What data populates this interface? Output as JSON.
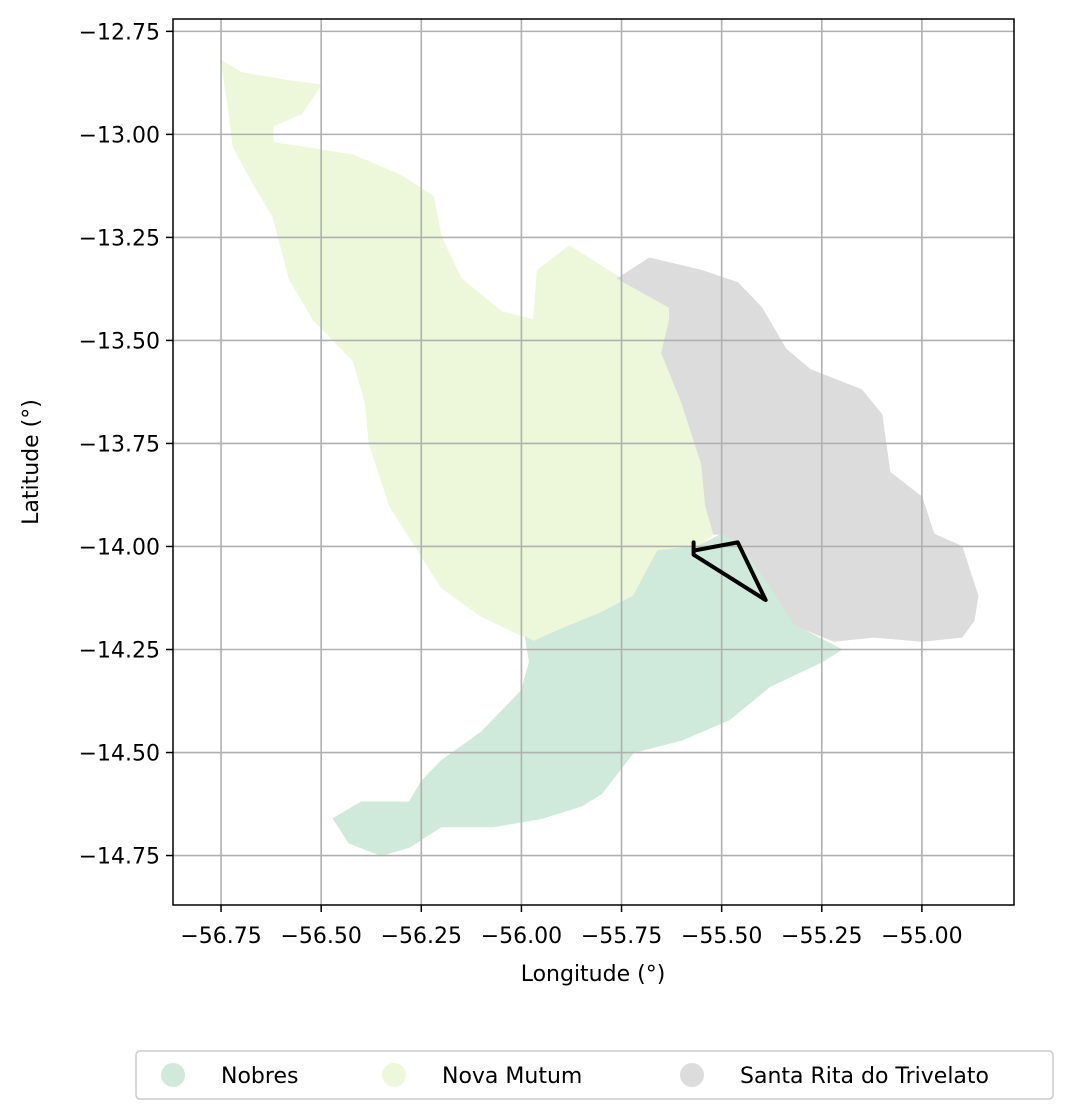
{
  "map": {
    "xlabel": "Longitude (°)",
    "ylabel": "Latitude (°)",
    "xlim": [
      -56.87,
      -54.77
    ],
    "ylim": [
      -14.87,
      -12.72
    ],
    "grid": true,
    "x_ticks": [
      -56.75,
      -56.5,
      -56.25,
      -56.0,
      -55.75,
      -55.5,
      -55.25,
      -55.0
    ],
    "x_tick_labels": [
      "−56.75",
      "−56.50",
      "−56.25",
      "−56.00",
      "−55.75",
      "−55.50",
      "−55.25",
      "−55.00"
    ],
    "y_ticks": [
      -12.75,
      -13.0,
      -13.25,
      -13.5,
      -13.75,
      -14.0,
      -14.25,
      -14.5,
      -14.75
    ],
    "y_tick_labels": [
      "−12.75",
      "−13.00",
      "−13.25",
      "−13.50",
      "−13.75",
      "−14.00",
      "−14.25",
      "−14.50",
      "−14.75"
    ],
    "regions": [
      {
        "name": "Nova Mutum",
        "color": "#edf8db",
        "coords": [
          [
            -56.75,
            -12.82
          ],
          [
            -56.7,
            -12.85
          ],
          [
            -56.58,
            -12.87
          ],
          [
            -56.5,
            -12.88
          ],
          [
            -56.55,
            -12.95
          ],
          [
            -56.62,
            -12.98
          ],
          [
            -56.62,
            -13.02
          ],
          [
            -56.55,
            -13.03
          ],
          [
            -56.42,
            -13.05
          ],
          [
            -56.3,
            -13.1
          ],
          [
            -56.22,
            -13.15
          ],
          [
            -56.2,
            -13.25
          ],
          [
            -56.15,
            -13.35
          ],
          [
            -56.05,
            -13.43
          ],
          [
            -55.97,
            -13.45
          ],
          [
            -55.96,
            -13.33
          ],
          [
            -55.88,
            -13.27
          ],
          [
            -55.8,
            -13.32
          ],
          [
            -55.7,
            -13.38
          ],
          [
            -55.63,
            -13.42
          ],
          [
            -55.63,
            -13.45
          ],
          [
            -55.65,
            -13.53
          ],
          [
            -55.6,
            -13.65
          ],
          [
            -55.55,
            -13.8
          ],
          [
            -55.54,
            -13.9
          ],
          [
            -55.52,
            -13.97
          ],
          [
            -55.56,
            -14.0
          ],
          [
            -55.66,
            -14.01
          ],
          [
            -55.72,
            -14.12
          ],
          [
            -55.8,
            -14.16
          ],
          [
            -55.9,
            -14.2
          ],
          [
            -55.97,
            -14.23
          ],
          [
            -55.99,
            -14.22
          ],
          [
            -56.1,
            -14.17
          ],
          [
            -56.2,
            -14.1
          ],
          [
            -56.33,
            -13.9
          ],
          [
            -56.38,
            -13.75
          ],
          [
            -56.39,
            -13.65
          ],
          [
            -56.42,
            -13.55
          ],
          [
            -56.52,
            -13.45
          ],
          [
            -56.58,
            -13.35
          ],
          [
            -56.62,
            -13.2
          ],
          [
            -56.67,
            -13.12
          ],
          [
            -56.72,
            -13.03
          ],
          [
            -56.73,
            -12.95
          ]
        ]
      },
      {
        "name": "Santa Rita do Trivelato",
        "color": "#dcdcdc",
        "coords": [
          [
            -55.76,
            -13.35
          ],
          [
            -55.68,
            -13.3
          ],
          [
            -55.55,
            -13.33
          ],
          [
            -55.46,
            -13.36
          ],
          [
            -55.4,
            -13.42
          ],
          [
            -55.34,
            -13.52
          ],
          [
            -55.28,
            -13.57
          ],
          [
            -55.15,
            -13.62
          ],
          [
            -55.1,
            -13.68
          ],
          [
            -55.08,
            -13.82
          ],
          [
            -55.0,
            -13.88
          ],
          [
            -54.97,
            -13.97
          ],
          [
            -54.9,
            -14.0
          ],
          [
            -54.86,
            -14.12
          ],
          [
            -54.87,
            -14.18
          ],
          [
            -54.9,
            -14.22
          ],
          [
            -55.0,
            -14.23
          ],
          [
            -55.12,
            -14.22
          ],
          [
            -55.22,
            -14.23
          ],
          [
            -55.32,
            -14.19
          ],
          [
            -55.38,
            -14.1
          ],
          [
            -55.45,
            -14.0
          ],
          [
            -55.5,
            -13.97
          ],
          [
            -55.52,
            -13.97
          ],
          [
            -55.54,
            -13.9
          ],
          [
            -55.55,
            -13.8
          ],
          [
            -55.6,
            -13.65
          ],
          [
            -55.65,
            -13.53
          ],
          [
            -55.63,
            -13.45
          ],
          [
            -55.63,
            -13.42
          ]
        ]
      },
      {
        "name": "Nobres",
        "color": "#cfeadb",
        "coords": [
          [
            -55.99,
            -14.22
          ],
          [
            -55.98,
            -14.28
          ],
          [
            -56.0,
            -14.35
          ],
          [
            -56.1,
            -14.45
          ],
          [
            -56.2,
            -14.52
          ],
          [
            -56.25,
            -14.57
          ],
          [
            -56.28,
            -14.62
          ],
          [
            -56.4,
            -14.62
          ],
          [
            -56.47,
            -14.66
          ],
          [
            -56.43,
            -14.72
          ],
          [
            -56.35,
            -14.75
          ],
          [
            -56.28,
            -14.73
          ],
          [
            -56.2,
            -14.68
          ],
          [
            -56.07,
            -14.68
          ],
          [
            -55.95,
            -14.66
          ],
          [
            -55.85,
            -14.63
          ],
          [
            -55.8,
            -14.6
          ],
          [
            -55.72,
            -14.5
          ],
          [
            -55.6,
            -14.47
          ],
          [
            -55.48,
            -14.42
          ],
          [
            -55.38,
            -14.34
          ],
          [
            -55.25,
            -14.28
          ],
          [
            -55.2,
            -14.25
          ],
          [
            -55.32,
            -14.19
          ],
          [
            -55.38,
            -14.1
          ],
          [
            -55.45,
            -14.0
          ],
          [
            -55.5,
            -13.97
          ],
          [
            -55.56,
            -14.0
          ],
          [
            -55.66,
            -14.01
          ],
          [
            -55.72,
            -14.12
          ],
          [
            -55.8,
            -14.16
          ],
          [
            -55.9,
            -14.2
          ],
          [
            -55.97,
            -14.23
          ]
        ]
      }
    ],
    "outline": {
      "color": "#000000",
      "coords": [
        [
          -55.57,
          -13.99
        ],
        [
          -55.57,
          -14.02
        ],
        [
          -55.39,
          -14.13
        ],
        [
          -55.46,
          -13.99
        ],
        [
          -55.57,
          -14.01
        ]
      ]
    },
    "legend": {
      "placement": "bottom",
      "items": [
        {
          "label": "Nobres",
          "color": "#cfeadb"
        },
        {
          "label": "Nova Mutum",
          "color": "#edf8db"
        },
        {
          "label": "Santa Rita do Trivelato",
          "color": "#dcdcdc"
        }
      ]
    }
  }
}
